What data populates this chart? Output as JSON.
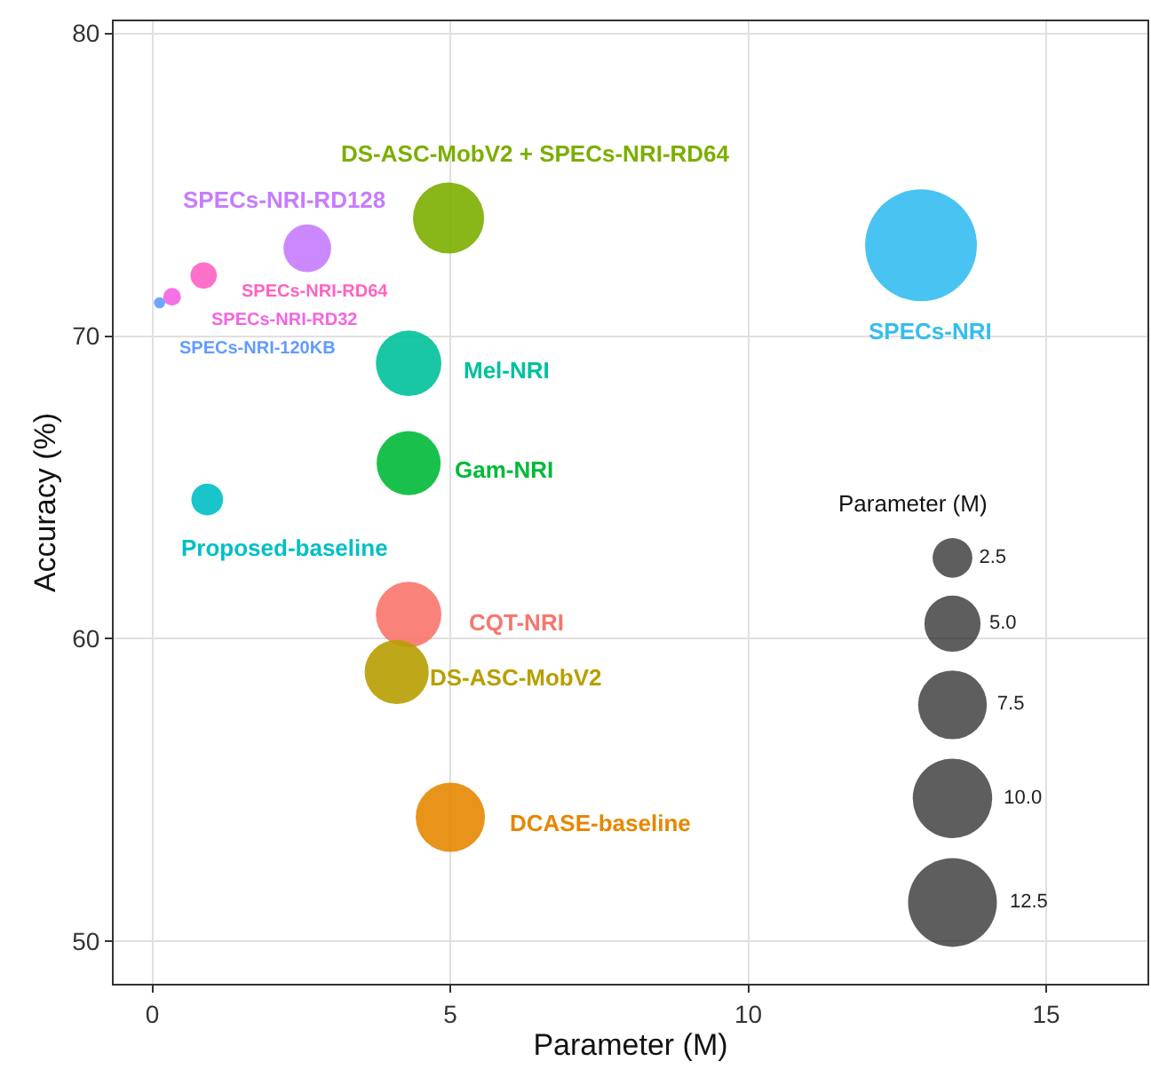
{
  "chart_data": {
    "type": "bubble",
    "xlabel": "Parameter (M)",
    "ylabel": "Accuracy (%)",
    "legend_title": "Parameter (M)",
    "xlim": [
      -0.65,
      16.7
    ],
    "xticks": [
      0,
      5,
      10,
      15
    ],
    "ylim": [
      48.6,
      80.4
    ],
    "yticks": [
      50,
      60,
      70,
      80
    ],
    "grid": true,
    "size_legend": [
      2.5,
      {
        "value": 5,
        "label": "5.0"
      },
      7.5,
      {
        "value": 10,
        "label": "10.0"
      },
      12.5
    ],
    "series": [
      {
        "name": "SPECs-NRI-120KB",
        "color": "#619cff",
        "x": [
          0.12
        ],
        "values": [
          71.1
        ],
        "sizes": [
          0.2
        ]
      },
      {
        "name": "SPECs-NRI-RD32",
        "color": "#f564e3",
        "x": [
          0.33
        ],
        "values": [
          71.3
        ],
        "sizes": [
          0.5
        ]
      },
      {
        "name": "SPECs-NRI-RD64",
        "color": "#ff61c3",
        "x": [
          0.86
        ],
        "values": [
          72.0
        ],
        "sizes": [
          1.1
        ]
      },
      {
        "name": "SPECs-NRI-RD128",
        "color": "#c77cff",
        "x": [
          2.6
        ],
        "values": [
          72.9
        ],
        "sizes": [
          3.6
        ]
      },
      {
        "name": "DS-ASC-MobV2 + SPECs-NRI-RD64",
        "color": "#7cae00",
        "x": [
          4.97
        ],
        "values": [
          73.9
        ],
        "sizes": [
          8.0
        ]
      },
      {
        "name": "SPECs-NRI",
        "color": "#35bdf0",
        "x": [
          12.9
        ],
        "values": [
          73.0
        ],
        "sizes": [
          19.8
        ]
      },
      {
        "name": "Mel-NRI",
        "color": "#00c19a",
        "x": [
          4.3
        ],
        "values": [
          69.1
        ],
        "sizes": [
          6.8
        ]
      },
      {
        "name": "Gam-NRI",
        "color": "#00ba38",
        "x": [
          4.3
        ],
        "values": [
          65.8
        ],
        "sizes": [
          6.5
        ]
      },
      {
        "name": "Proposed-baseline",
        "color": "#00bfc4",
        "x": [
          0.92
        ],
        "values": [
          64.6
        ],
        "sizes": [
          1.6
        ]
      },
      {
        "name": "CQT-NRI",
        "color": "#f8766d",
        "x": [
          4.3
        ],
        "values": [
          60.8
        ],
        "sizes": [
          6.8
        ]
      },
      {
        "name": "DS-ASC-MobV2",
        "color": "#b79f00",
        "x": [
          4.1
        ],
        "values": [
          58.9
        ],
        "sizes": [
          6.5
        ]
      },
      {
        "name": "DCASE-baseline",
        "color": "#e58700",
        "x": [
          5.0
        ],
        "values": [
          54.1
        ],
        "sizes": [
          7.6
        ]
      }
    ]
  }
}
